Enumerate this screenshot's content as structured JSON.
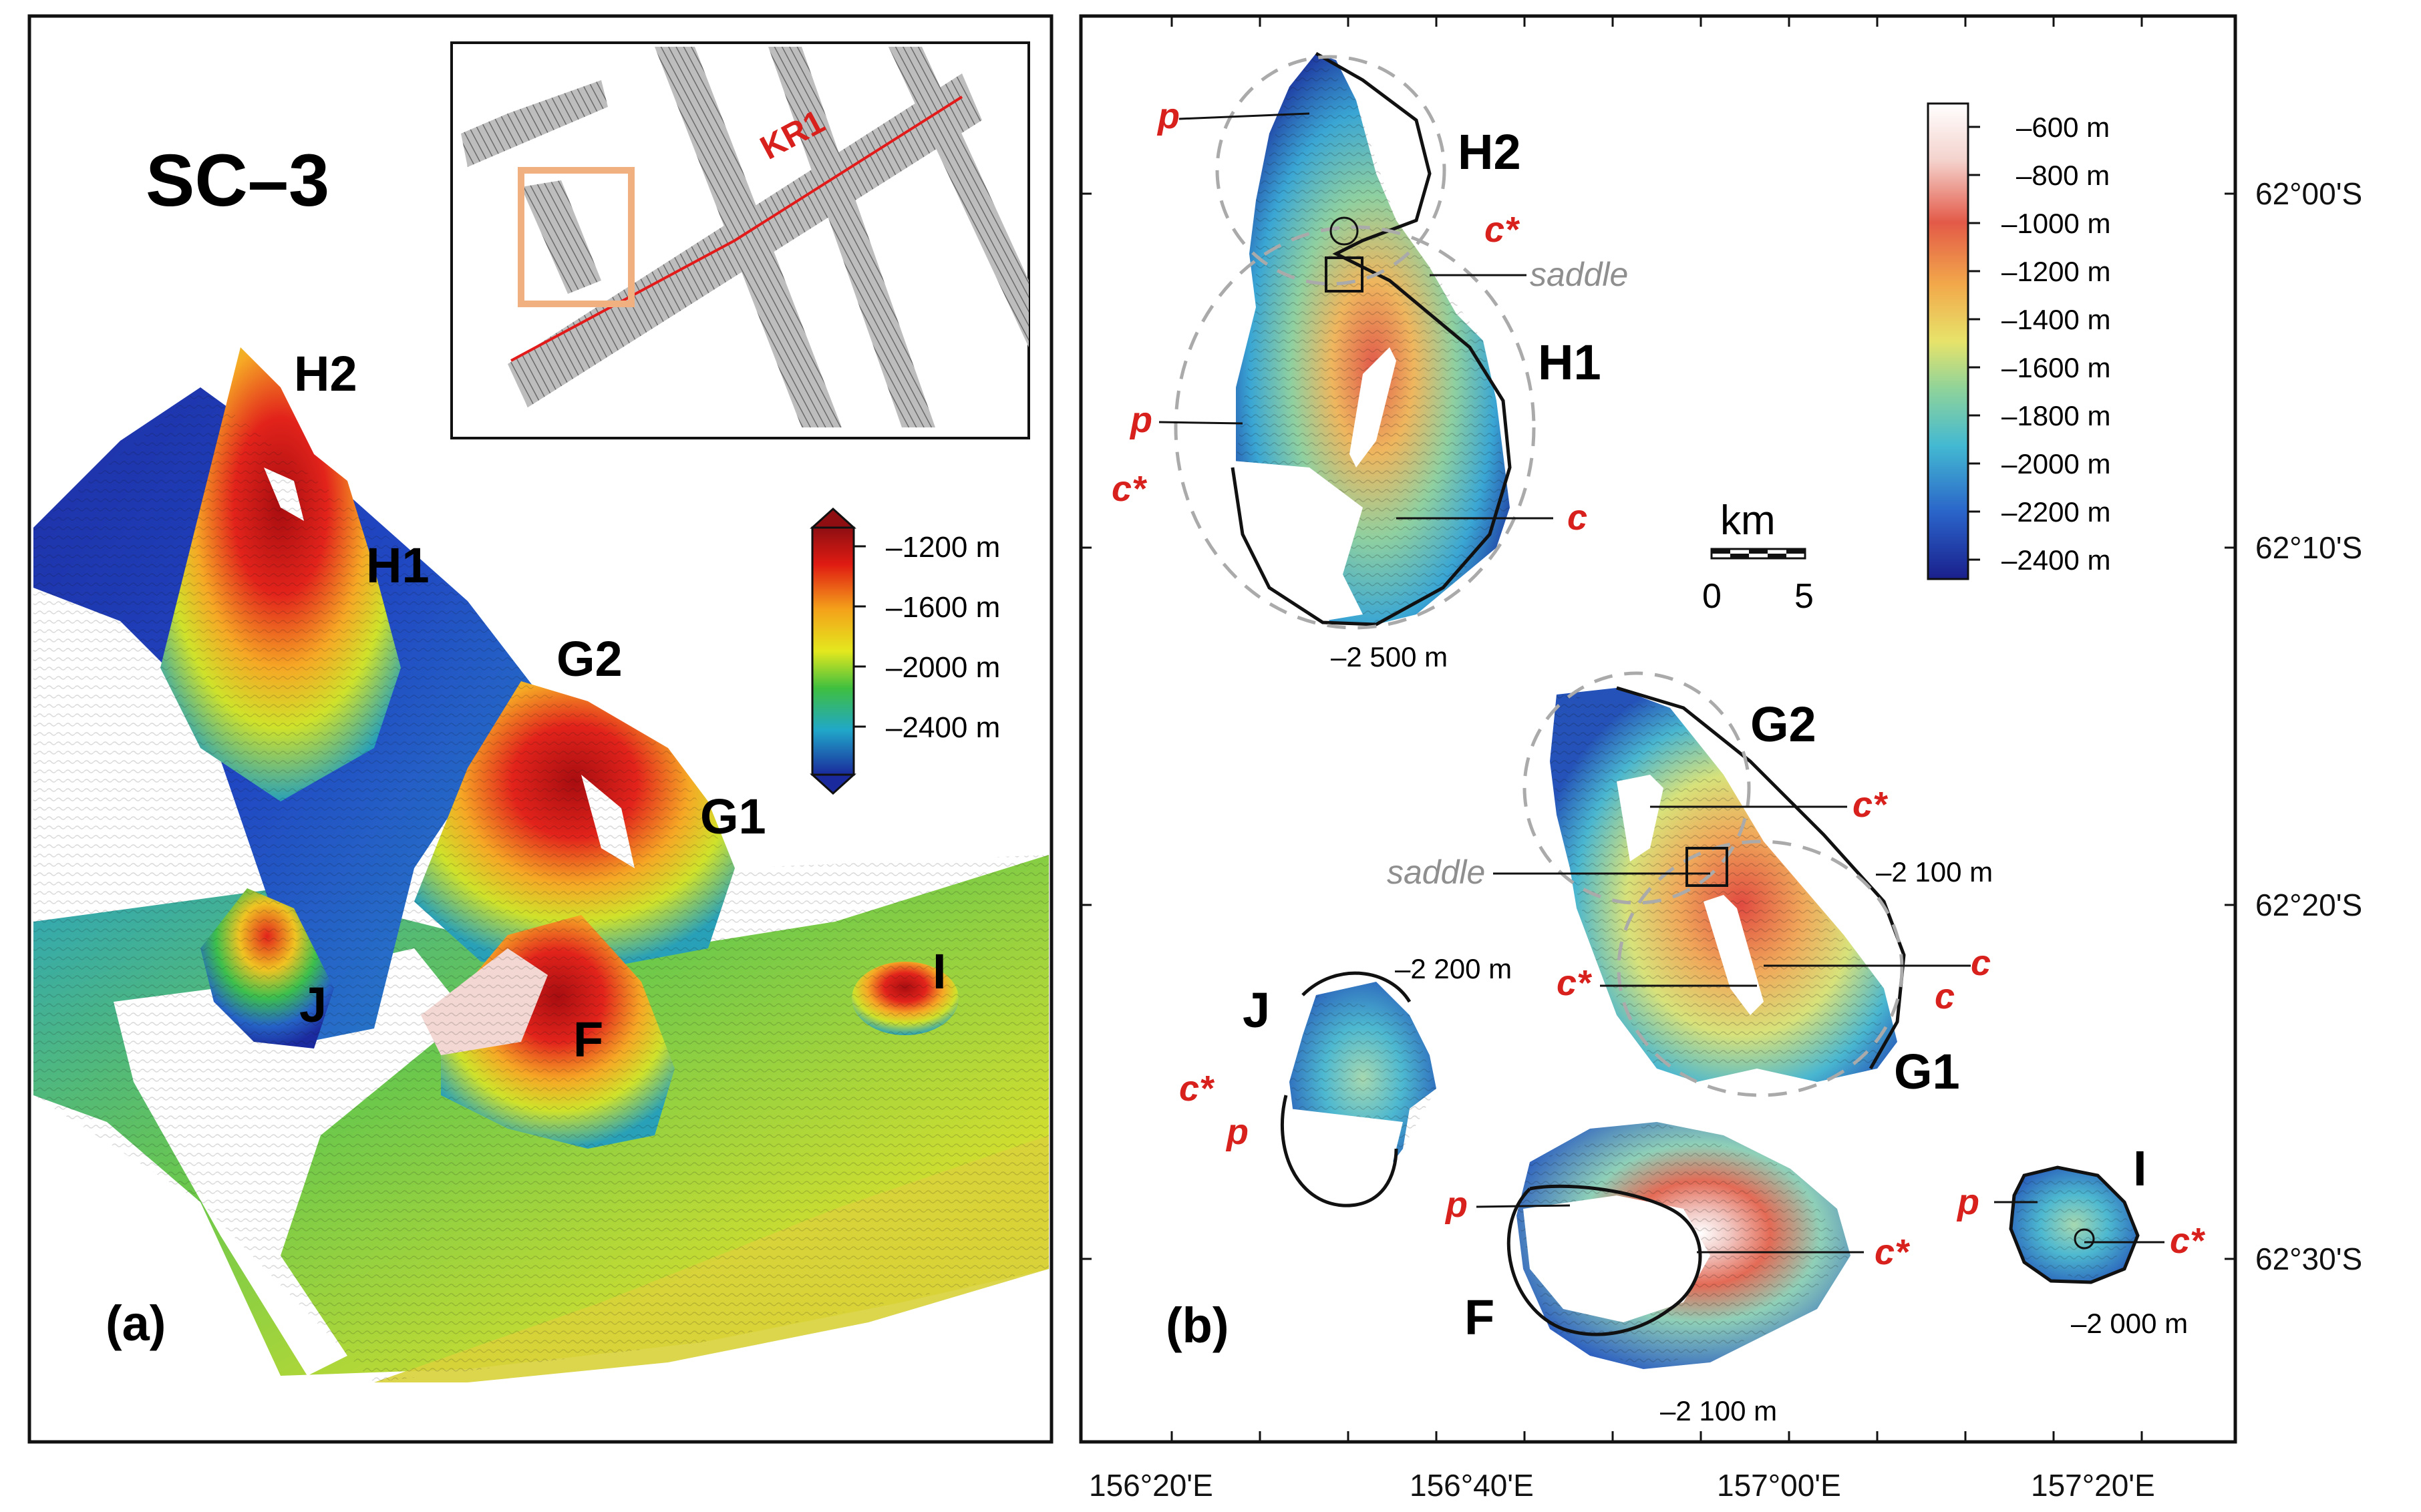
{
  "panel_a": {
    "title": "SC–3",
    "letter": "(a)",
    "inset_track_label": "KR1",
    "peak_labels": [
      "H2",
      "H1",
      "G2",
      "G1",
      "J",
      "F",
      "I"
    ],
    "colorbar_ticks": [
      "–1200 m",
      "–1600 m",
      "–2000 m",
      "–2400 m"
    ]
  },
  "panel_b": {
    "letter": "(b)",
    "peak_labels": [
      "H2",
      "H1",
      "G2",
      "G1",
      "J",
      "F",
      "I"
    ],
    "colorbar_ticks": [
      "–600 m",
      "–800 m",
      "–1000 m",
      "–1200 m",
      "–1400 m",
      "–1600 m",
      "–1800 m",
      "–2000 m",
      "–2200 m",
      "–2400 m"
    ],
    "scale_bar": {
      "unit": "km",
      "ticks": [
        "0",
        "5"
      ]
    },
    "depth_labels": {
      "h1": "–2 500 m",
      "g": "–2 100 m",
      "j": "–2 200 m",
      "f": "–2 100 m",
      "i": "–2 000 m"
    },
    "marker_p": "p",
    "marker_c": "c",
    "marker_c_star": "c*",
    "saddle": "saddle",
    "lon_ticks": [
      "156°20'E",
      "156°40'E",
      "157°00'E",
      "157°20'E"
    ],
    "lat_ticks": [
      "62°00'S",
      "62°10'S",
      "62°20'S",
      "62°30'S"
    ]
  },
  "colors": {
    "red_label": "#d8201c",
    "saddle_gray": "#8f8f8f",
    "deep": "#1a1f8c",
    "shallow": "#b01010"
  }
}
